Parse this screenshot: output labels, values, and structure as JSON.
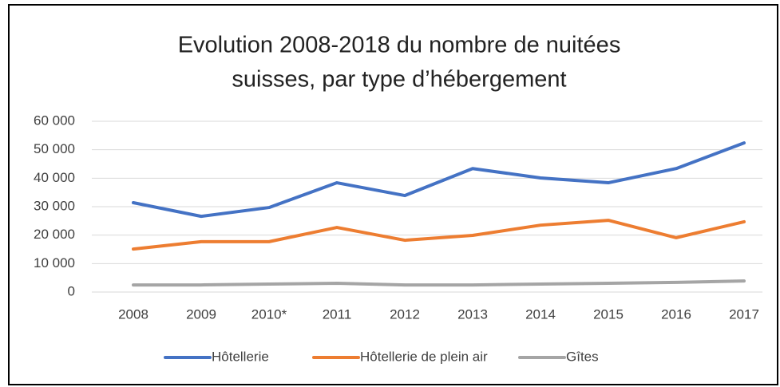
{
  "chart_data": {
    "type": "line",
    "title": [
      "Evolution 2008-2018 du nombre de nuitées",
      "suisses, par type d’hébergement"
    ],
    "categories": [
      "2008",
      "2009",
      "2010*",
      "2011",
      "2012",
      "2013",
      "2014",
      "2015",
      "2016",
      "2017"
    ],
    "series": [
      {
        "name": "Hôtellerie",
        "color": "#4472c4",
        "values": [
          31400,
          26600,
          29700,
          38400,
          33900,
          43400,
          40100,
          38400,
          43400,
          52400
        ]
      },
      {
        "name": "Hôtellerie de plein air",
        "color": "#ed7d31",
        "values": [
          15100,
          17700,
          17700,
          22700,
          18200,
          19900,
          23500,
          25200,
          19100,
          24700
        ]
      },
      {
        "name": "Gîtes",
        "color": "#a5a5a5",
        "values": [
          2500,
          2500,
          2800,
          3100,
          2500,
          2500,
          2800,
          3100,
          3400,
          3900
        ]
      }
    ],
    "ylim": [
      0,
      60000
    ],
    "yticks": [
      0,
      {
        "value": 10000,
        "label": "10 000"
      },
      {
        "value": 20000,
        "label": "20 000"
      },
      {
        "value": 30000,
        "label": "30 000"
      },
      {
        "value": 40000,
        "label": "40 000"
      },
      {
        "value": 50000,
        "label": "50 000"
      },
      {
        "value": 60000,
        "label": "60 000"
      }
    ],
    "grid": true,
    "legend": "bottom"
  }
}
